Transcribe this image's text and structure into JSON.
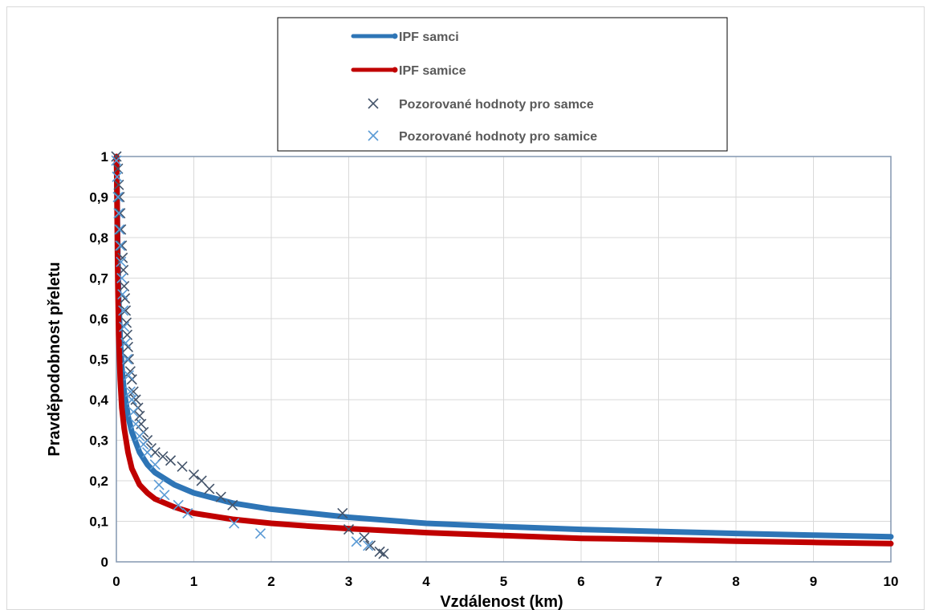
{
  "chart_data": {
    "type": "scatter",
    "xlabel": "Vzdálenost (km)",
    "ylabel": "Pravděpodobnost přeletu",
    "xlim": [
      0,
      10
    ],
    "ylim": [
      0,
      1
    ],
    "x_ticks": [
      "0",
      "1",
      "2",
      "3",
      "4",
      "5",
      "6",
      "7",
      "8",
      "9",
      "10"
    ],
    "y_ticks": [
      "0",
      "0,1",
      "0,2",
      "0,3",
      "0,4",
      "0,5",
      "0,6",
      "0,7",
      "0,8",
      "0,9",
      "1"
    ],
    "grid": true,
    "legend_position": "top-center",
    "series": [
      {
        "name": "IPF samci",
        "kind": "line",
        "color": "#2e75b6",
        "x": [
          0.002,
          0.005,
          0.01,
          0.015,
          0.02,
          0.03,
          0.05,
          0.07,
          0.1,
          0.15,
          0.2,
          0.3,
          0.4,
          0.5,
          0.75,
          1,
          1.5,
          2,
          2.5,
          3,
          4,
          5,
          6,
          7,
          8,
          9,
          10
        ],
        "y": [
          1.0,
          0.96,
          0.9,
          0.82,
          0.75,
          0.65,
          0.55,
          0.48,
          0.42,
          0.36,
          0.32,
          0.27,
          0.24,
          0.22,
          0.19,
          0.17,
          0.145,
          0.13,
          0.12,
          0.11,
          0.095,
          0.087,
          0.08,
          0.075,
          0.07,
          0.066,
          0.062
        ]
      },
      {
        "name": "IPF samice",
        "kind": "line",
        "color": "#c00000",
        "x": [
          0.002,
          0.005,
          0.01,
          0.015,
          0.02,
          0.03,
          0.05,
          0.07,
          0.1,
          0.15,
          0.2,
          0.3,
          0.4,
          0.5,
          0.75,
          1,
          1.5,
          2,
          2.5,
          3,
          4,
          5,
          6,
          7,
          8,
          9,
          10
        ],
        "y": [
          1.0,
          0.95,
          0.85,
          0.76,
          0.68,
          0.56,
          0.45,
          0.38,
          0.33,
          0.27,
          0.23,
          0.19,
          0.17,
          0.155,
          0.135,
          0.12,
          0.105,
          0.095,
          0.088,
          0.082,
          0.072,
          0.065,
          0.058,
          0.055,
          0.051,
          0.048,
          0.045
        ]
      },
      {
        "name": "Pozorované hodnoty pro samce",
        "kind": "marker",
        "color": "#44546a",
        "x": [
          0.0,
          0.02,
          0.03,
          0.04,
          0.05,
          0.06,
          0.07,
          0.08,
          0.09,
          0.1,
          0.11,
          0.12,
          0.13,
          0.14,
          0.15,
          0.16,
          0.18,
          0.2,
          0.22,
          0.25,
          0.28,
          0.3,
          0.32,
          0.35,
          0.4,
          0.45,
          0.5,
          0.6,
          0.7,
          0.85,
          1.0,
          1.1,
          1.2,
          1.35,
          1.5,
          2.92,
          3.0,
          3.2,
          3.28,
          3.4,
          3.45
        ],
        "y": [
          1.0,
          0.97,
          0.93,
          0.9,
          0.86,
          0.82,
          0.78,
          0.75,
          0.72,
          0.68,
          0.65,
          0.62,
          0.59,
          0.56,
          0.53,
          0.5,
          0.47,
          0.45,
          0.42,
          0.4,
          0.38,
          0.36,
          0.34,
          0.32,
          0.3,
          0.28,
          0.27,
          0.26,
          0.25,
          0.235,
          0.215,
          0.2,
          0.18,
          0.16,
          0.14,
          0.12,
          0.08,
          0.06,
          0.04,
          0.025,
          0.02
        ]
      },
      {
        "name": "Pozorované hodnoty pro samice",
        "kind": "marker",
        "color": "#5b9bd5",
        "x": [
          0.0,
          0.01,
          0.02,
          0.03,
          0.04,
          0.05,
          0.06,
          0.07,
          0.08,
          0.09,
          0.1,
          0.12,
          0.14,
          0.16,
          0.18,
          0.2,
          0.22,
          0.25,
          0.3,
          0.35,
          0.4,
          0.5,
          0.55,
          0.62,
          0.8,
          0.92,
          1.52,
          1.86,
          3.1,
          3.25
        ],
        "y": [
          0.99,
          0.95,
          0.9,
          0.86,
          0.82,
          0.78,
          0.74,
          0.7,
          0.66,
          0.62,
          0.58,
          0.54,
          0.5,
          0.46,
          0.42,
          0.4,
          0.37,
          0.34,
          0.31,
          0.29,
          0.27,
          0.24,
          0.19,
          0.165,
          0.14,
          0.12,
          0.095,
          0.07,
          0.05,
          0.04
        ]
      }
    ]
  }
}
